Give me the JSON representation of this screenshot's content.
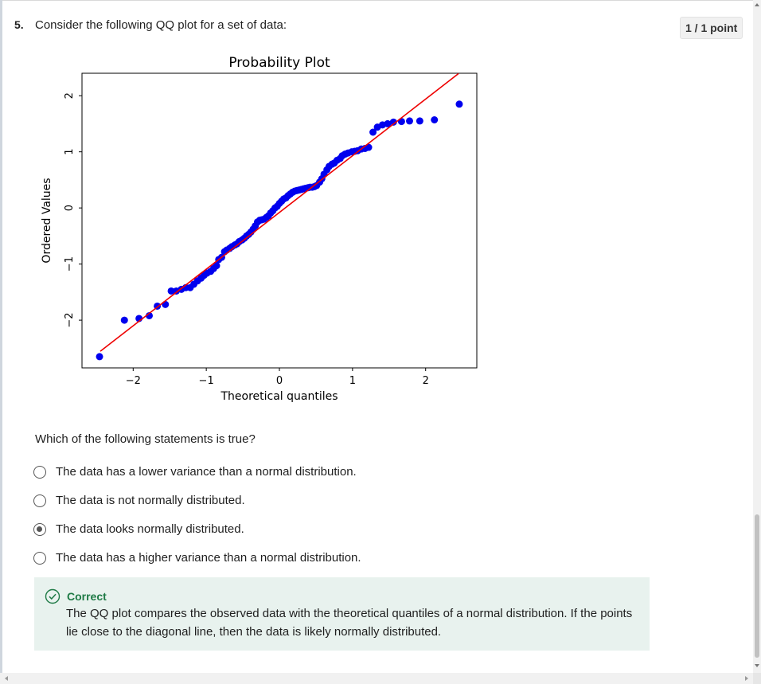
{
  "question": {
    "number": "5.",
    "text": "Consider the following QQ plot for a set of data:",
    "points": "1 / 1 point",
    "prompt": "Which of the following statements is true?",
    "options": [
      {
        "label": "The data has a lower variance than a normal distribution.",
        "selected": false
      },
      {
        "label": "The data is not normally distributed.",
        "selected": false
      },
      {
        "label": "The data looks normally distributed.",
        "selected": true
      },
      {
        "label": "The data has a higher variance than a normal distribution.",
        "selected": false
      }
    ]
  },
  "feedback": {
    "title": "Correct",
    "body": "The QQ plot compares the observed data with the theoretical quantiles of a normal distribution. If the points lie close to the diagonal line, then the data is likely normally distributed.",
    "color": "#1e7a45"
  },
  "chart_data": {
    "type": "scatter",
    "title": "Probability Plot",
    "xlabel": "Theoretical quantiles",
    "ylabel": "Ordered Values",
    "xlim": [
      -2.7,
      2.7
    ],
    "ylim": [
      -2.85,
      2.4
    ],
    "xticks": [
      -2,
      -1,
      0,
      1,
      2
    ],
    "yticks": [
      -2,
      -1,
      0,
      1,
      2
    ],
    "xtick_labels": [
      "−2",
      "−1",
      "0",
      "1",
      "2"
    ],
    "ytick_labels": [
      "−2",
      "−1",
      "0",
      "1",
      "2"
    ],
    "grid": false,
    "point_color": "#0000ee",
    "line_color": "#ee0000",
    "fit_line": {
      "slope": 1.01,
      "intercept": -0.08,
      "x_range": [
        -2.45,
        2.45
      ]
    },
    "x": [
      -2.46,
      -2.12,
      -1.92,
      -1.78,
      -1.67,
      -1.56,
      -1.48,
      -1.41,
      -1.34,
      -1.28,
      -1.22,
      -1.17,
      -1.12,
      -1.07,
      -1.03,
      -0.99,
      -0.94,
      -0.9,
      -0.86,
      -0.83,
      -0.79,
      -0.75,
      -0.72,
      -0.68,
      -0.65,
      -0.61,
      -0.58,
      -0.55,
      -0.51,
      -0.48,
      -0.45,
      -0.42,
      -0.39,
      -0.36,
      -0.33,
      -0.3,
      -0.27,
      -0.24,
      -0.21,
      -0.18,
      -0.15,
      -0.12,
      -0.09,
      -0.06,
      -0.03,
      0.0,
      0.03,
      0.06,
      0.09,
      0.12,
      0.15,
      0.18,
      0.21,
      0.24,
      0.27,
      0.3,
      0.33,
      0.36,
      0.39,
      0.42,
      0.45,
      0.48,
      0.51,
      0.55,
      0.58,
      0.61,
      0.65,
      0.68,
      0.72,
      0.75,
      0.79,
      0.83,
      0.86,
      0.9,
      0.94,
      0.99,
      1.03,
      1.07,
      1.12,
      1.17,
      1.22,
      1.28,
      1.34,
      1.41,
      1.48,
      1.56,
      1.67,
      1.78,
      1.92,
      2.12,
      2.46
    ],
    "y": [
      -2.65,
      -2.0,
      -1.97,
      -1.92,
      -1.75,
      -1.72,
      -1.48,
      -1.48,
      -1.45,
      -1.42,
      -1.42,
      -1.36,
      -1.3,
      -1.25,
      -1.2,
      -1.16,
      -1.13,
      -1.08,
      -1.03,
      -0.92,
      -0.88,
      -0.78,
      -0.75,
      -0.72,
      -0.69,
      -0.66,
      -0.64,
      -0.6,
      -0.57,
      -0.54,
      -0.5,
      -0.47,
      -0.43,
      -0.38,
      -0.32,
      -0.25,
      -0.22,
      -0.21,
      -0.2,
      -0.17,
      -0.14,
      -0.09,
      -0.05,
      0.0,
      0.03,
      0.08,
      0.12,
      0.16,
      0.18,
      0.22,
      0.25,
      0.28,
      0.3,
      0.31,
      0.32,
      0.33,
      0.34,
      0.35,
      0.36,
      0.37,
      0.37,
      0.38,
      0.4,
      0.46,
      0.52,
      0.6,
      0.68,
      0.74,
      0.78,
      0.8,
      0.85,
      0.88,
      0.93,
      0.96,
      0.98,
      1.0,
      1.01,
      1.02,
      1.05,
      1.06,
      1.08,
      1.35,
      1.44,
      1.48,
      1.5,
      1.53,
      1.54,
      1.55,
      1.55,
      1.57,
      1.85
    ]
  }
}
